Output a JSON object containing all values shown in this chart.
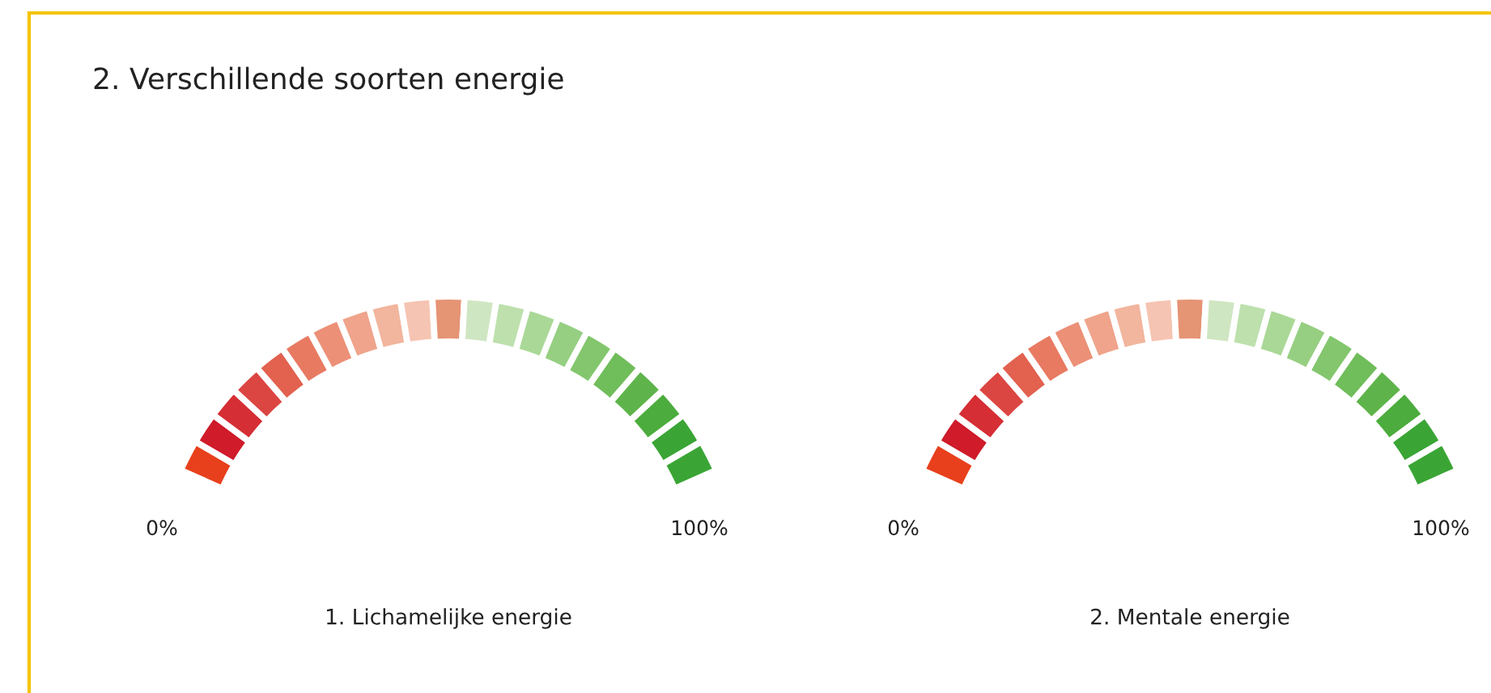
{
  "chart_data": [
    {
      "type": "donut",
      "title": "2. Verschillende soorten energie",
      "xlabel": "1. Lichamelijke energie",
      "annotations": [
        "0%",
        "100%"
      ],
      "categories": [
        null,
        null,
        null,
        null,
        null,
        null,
        null,
        null,
        null,
        null,
        null,
        null,
        null,
        null,
        null,
        null,
        null,
        null,
        null,
        null,
        null
      ],
      "values": [
        4.76,
        4.76,
        4.76,
        4.76,
        4.76,
        4.76,
        4.76,
        4.76,
        4.76,
        4.76,
        4.8,
        4.76,
        4.76,
        4.76,
        4.76,
        4.76,
        4.76,
        4.76,
        4.76,
        4.76,
        4.76
      ],
      "colors": [
        "#e8401c",
        "#cf1b2a",
        "#d52e34",
        "#dc4642",
        "#e2614f",
        "#e87a62",
        "#ec9077",
        "#efa48b",
        "#f2b59d",
        "#f6c4b2",
        "#e59474",
        "#cfe6c2",
        "#bde0ad",
        "#aad897",
        "#96cf82",
        "#83c66e",
        "#70bd5b",
        "#5eb44a",
        "#4cac3d",
        "#3aa535",
        "#3aa535"
      ]
    },
    {
      "type": "donut",
      "xlabel": "2. Mentale energie",
      "annotations": [
        "0%",
        "100%"
      ],
      "categories": [
        null,
        null,
        null,
        null,
        null,
        null,
        null,
        null,
        null,
        null,
        null,
        null,
        null,
        null,
        null,
        null,
        null,
        null,
        null,
        null,
        null
      ],
      "values": [
        4.76,
        4.76,
        4.76,
        4.76,
        4.76,
        4.76,
        4.76,
        4.76,
        4.76,
        4.76,
        4.8,
        4.76,
        4.76,
        4.76,
        4.76,
        4.76,
        4.76,
        4.76,
        4.76,
        4.76,
        4.76
      ],
      "colors": [
        "#e8401c",
        "#cf1b2a",
        "#d52e34",
        "#dc4642",
        "#e2614f",
        "#e87a62",
        "#ec9077",
        "#efa48b",
        "#f2b59d",
        "#f6c4b2",
        "#e59474",
        "#cfe6c2",
        "#bde0ad",
        "#aad897",
        "#96cf82",
        "#83c66e",
        "#70bd5b",
        "#5eb44a",
        "#4cac3d",
        "#3aa535",
        "#3aa535"
      ]
    }
  ]
}
